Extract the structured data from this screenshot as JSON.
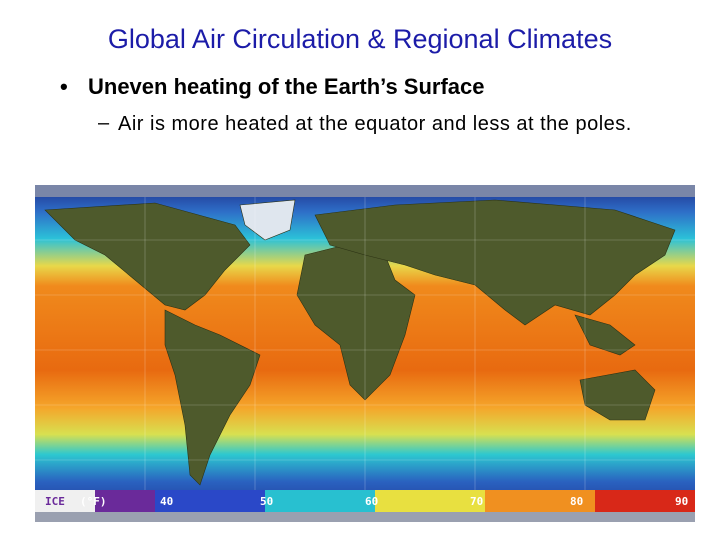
{
  "header": {
    "title": "Global Air Circulation & Regional Climates"
  },
  "bullets": [
    {
      "text": "Uneven heating of the Earth’s Surface",
      "sub": [
        "Air is more heated at the equator and less at the poles."
      ]
    }
  ],
  "map": {
    "legend": [
      "ICE",
      "(°F)",
      "40",
      "50",
      "60",
      "70",
      "80",
      "90"
    ]
  }
}
